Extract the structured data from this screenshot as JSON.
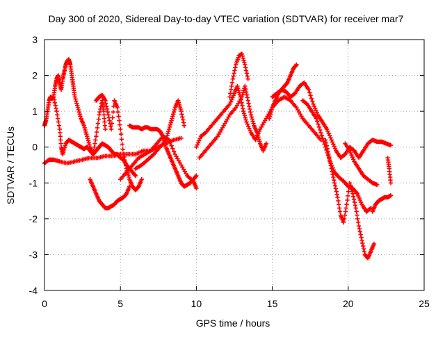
{
  "chart_data": {
    "type": "scatter",
    "title": "Day 300 of 2020, Sidereal Day-to-day VTEC variation (SDTVAR) for receiver mar7",
    "xlabel": "GPS time / hours",
    "ylabel": "SDTVAR / TECUs",
    "xlim": [
      0,
      25
    ],
    "ylim": [
      -4,
      3
    ],
    "xticks": [
      0,
      5,
      10,
      15,
      20,
      25
    ],
    "yticks": [
      -4,
      -3,
      -2,
      -1,
      0,
      1,
      2,
      3
    ],
    "xtick_labels": [
      "0",
      "5",
      "10",
      "15",
      "20",
      "25"
    ],
    "ytick_labels": [
      "-4",
      "-3",
      "-2",
      "-1",
      "0",
      "1",
      "2",
      "3"
    ],
    "grid": true,
    "marker": "+",
    "color": "#ff0000",
    "series": [
      {
        "name": "trace-1",
        "x": [
          0.0,
          0.1,
          0.2,
          0.3,
          0.4,
          0.5,
          0.6,
          0.7,
          0.8,
          0.9,
          1.0,
          1.1,
          1.2,
          1.3,
          1.4,
          1.5,
          1.6,
          1.7,
          1.8,
          1.9,
          2.0,
          2.2,
          2.4,
          2.6,
          2.8,
          3.0,
          3.2,
          3.4,
          3.6,
          3.8,
          3.9,
          4.0
        ],
        "y": [
          0.6,
          0.75,
          1.0,
          1.3,
          1.4,
          1.35,
          1.4,
          1.7,
          1.9,
          2.0,
          1.8,
          1.6,
          1.9,
          2.1,
          2.3,
          2.4,
          2.45,
          2.3,
          2.0,
          1.7,
          1.4,
          1.1,
          0.8,
          0.6,
          0.3,
          0.0,
          -0.2,
          0.3,
          0.9,
          1.3,
          1.0,
          0.5
        ]
      },
      {
        "name": "trace-2",
        "x": [
          0.6,
          0.8,
          1.0,
          1.1,
          1.2,
          1.4,
          1.6,
          1.8,
          2.0,
          2.2,
          2.4,
          2.6,
          2.8,
          3.0,
          3.2,
          3.4,
          3.6,
          3.8,
          4.0,
          4.2,
          4.4,
          4.6,
          4.8,
          5.0,
          5.2,
          5.4,
          5.6,
          5.8,
          6.0
        ],
        "y": [
          1.4,
          1.0,
          0.5,
          0.0,
          -0.2,
          0.1,
          0.2,
          0.15,
          0.1,
          0.05,
          0.0,
          -0.05,
          0.0,
          -0.1,
          -0.2,
          -0.1,
          0.0,
          0.1,
          0.05,
          0.0,
          -0.1,
          -0.2,
          -0.2,
          -0.3,
          -0.35,
          -0.5,
          -0.6,
          -0.7,
          -0.8
        ]
      },
      {
        "name": "trace-3",
        "x": [
          0.0,
          0.3,
          0.6,
          1.0,
          1.5,
          2.0,
          2.5,
          3.0,
          3.5,
          4.0,
          4.5,
          5.0,
          5.5,
          6.0,
          6.5,
          7.0,
          7.5,
          8.0,
          8.5,
          9.0
        ],
        "y": [
          -0.45,
          -0.35,
          -0.35,
          -0.4,
          -0.45,
          -0.4,
          -0.35,
          -0.3,
          -0.3,
          -0.25,
          -0.25,
          -0.2,
          -0.2,
          -0.2,
          -0.1,
          -0.1,
          0.0,
          0.1,
          0.2,
          0.25
        ]
      },
      {
        "name": "trace-4",
        "x": [
          3.0,
          3.2,
          3.4,
          3.6,
          3.8,
          4.0,
          4.2,
          4.4,
          4.6,
          4.8,
          5.0,
          5.2,
          5.4,
          5.6
        ],
        "y": [
          -0.9,
          -1.1,
          -1.3,
          -1.5,
          -1.6,
          -1.7,
          -1.7,
          -1.65,
          -1.6,
          -1.5,
          -1.45,
          -1.4,
          -1.3,
          -1.1
        ]
      },
      {
        "name": "trace-5",
        "x": [
          3.4,
          3.6,
          3.8,
          4.0,
          4.2,
          4.4,
          4.6,
          4.8,
          5.0,
          5.2,
          5.4,
          5.6,
          5.8,
          6.0,
          6.2,
          6.4
        ],
        "y": [
          1.3,
          1.4,
          1.45,
          1.3,
          0.9,
          0.5,
          1.3,
          1.1,
          0.5,
          -0.2,
          -0.6,
          -0.9,
          -1.1,
          -1.2,
          -1.1,
          -0.9
        ]
      },
      {
        "name": "trace-6",
        "x": [
          5.6,
          5.8,
          6.0,
          6.2,
          6.4,
          6.6,
          6.8,
          7.0,
          7.2,
          7.4,
          7.6,
          7.8,
          8.0,
          8.2,
          8.4,
          8.6,
          8.8,
          9.0,
          9.2,
          9.4,
          9.6,
          9.8,
          10.0
        ],
        "y": [
          0.6,
          0.55,
          0.55,
          0.55,
          0.5,
          0.55,
          0.55,
          0.5,
          0.5,
          0.5,
          0.45,
          0.3,
          0.0,
          -0.2,
          -0.4,
          -0.6,
          -0.8,
          -1.0,
          -1.1,
          -1.05,
          -1.0,
          -0.9,
          -0.8
        ]
      },
      {
        "name": "trace-7",
        "x": [
          5.0,
          5.4,
          5.8,
          6.2,
          6.6,
          7.0,
          7.4,
          7.8,
          8.2,
          8.6,
          9.0,
          9.4,
          9.8,
          10.0
        ],
        "y": [
          -0.9,
          -0.7,
          -0.5,
          -0.3,
          -0.2,
          -0.1,
          0.1,
          0.3,
          0.2,
          -0.2,
          -0.5,
          -0.8,
          -0.95,
          -1.15
        ]
      },
      {
        "name": "trace-8",
        "x": [
          6.0,
          6.4,
          6.8,
          7.2,
          7.6,
          8.0,
          8.2,
          8.4,
          8.6,
          8.8,
          9.0,
          9.2
        ],
        "y": [
          -0.6,
          -0.5,
          -0.35,
          -0.2,
          0.0,
          0.2,
          0.5,
          0.8,
          1.1,
          1.3,
          1.0,
          0.6
        ]
      },
      {
        "name": "trace-9",
        "x": [
          10.0,
          10.3,
          10.6,
          11.0,
          11.4,
          11.8,
          12.2,
          12.5,
          12.7,
          12.9,
          13.1,
          13.3,
          13.6,
          13.9,
          14.2,
          14.6,
          15.0,
          15.4,
          15.8,
          16.2,
          16.6,
          17.0,
          17.4,
          17.8,
          18.2
        ],
        "y": [
          0.0,
          0.3,
          0.4,
          0.6,
          0.8,
          1.0,
          1.2,
          1.5,
          1.7,
          1.4,
          1.0,
          0.7,
          0.4,
          0.2,
          0.5,
          0.8,
          1.1,
          1.3,
          1.4,
          1.3,
          1.1,
          0.8,
          0.6,
          0.4,
          0.2
        ]
      },
      {
        "name": "trace-10",
        "x": [
          12.2,
          12.4,
          12.6,
          12.8,
          13.0,
          13.2,
          13.4
        ],
        "y": [
          1.4,
          1.9,
          2.3,
          2.55,
          2.6,
          2.3,
          1.9
        ]
      },
      {
        "name": "trace-11",
        "x": [
          10.2,
          10.6,
          11.0,
          11.4,
          11.8,
          12.2,
          12.6,
          13.0,
          13.2,
          13.4,
          13.6,
          13.8,
          14.0,
          14.2,
          14.4,
          14.6
        ],
        "y": [
          -0.3,
          -0.1,
          0.1,
          0.3,
          0.6,
          0.9,
          1.1,
          1.4,
          1.7,
          1.3,
          0.9,
          0.6,
          0.4,
          0.1,
          -0.1,
          0.1
        ]
      },
      {
        "name": "trace-12",
        "x": [
          14.8,
          15.0,
          15.2,
          15.4,
          15.6,
          15.8,
          16.0,
          16.2,
          16.4,
          16.6
        ],
        "y": [
          0.8,
          1.1,
          1.3,
          1.5,
          1.6,
          1.7,
          1.8,
          2.0,
          2.2,
          2.3
        ]
      },
      {
        "name": "trace-13",
        "x": [
          15.0,
          15.3,
          15.6,
          15.9,
          16.2,
          16.5,
          16.8,
          17.1,
          17.4,
          17.7,
          18.0,
          18.3,
          18.6,
          18.9,
          19.2,
          19.5,
          19.8,
          20.1,
          20.4,
          20.7,
          21.0,
          21.3,
          21.6,
          21.9,
          22.2,
          22.5,
          22.8
        ],
        "y": [
          1.4,
          1.5,
          1.6,
          1.55,
          1.4,
          1.5,
          1.7,
          1.8,
          1.6,
          1.2,
          0.9,
          0.7,
          0.5,
          0.2,
          -0.1,
          -0.3,
          -0.2,
          0.0,
          -0.1,
          -0.3,
          -0.1,
          0.1,
          0.2,
          0.15,
          0.15,
          0.1,
          0.05
        ]
      },
      {
        "name": "trace-14",
        "x": [
          17.0,
          17.3,
          17.6,
          17.9,
          18.2,
          18.5,
          18.8,
          19.1,
          19.4,
          19.7,
          20.0,
          20.3,
          20.6,
          20.9,
          21.2,
          21.5
        ],
        "y": [
          1.3,
          1.2,
          1.0,
          0.8,
          0.4,
          0.0,
          -0.4,
          -0.7,
          -0.85,
          -0.95,
          -1.1,
          -1.15,
          -1.3,
          -1.6,
          -1.8,
          -1.7
        ]
      },
      {
        "name": "trace-15",
        "x": [
          18.5,
          18.7,
          18.9,
          19.1,
          19.3,
          19.5,
          19.7,
          19.9,
          20.1,
          20.3,
          20.5,
          20.7,
          20.9,
          21.1,
          21.3,
          21.5,
          21.7
        ],
        "y": [
          0.2,
          -0.2,
          -0.6,
          -1.0,
          -1.4,
          -1.9,
          -2.1,
          -1.6,
          -1.0,
          -1.3,
          -1.7,
          -2.2,
          -2.6,
          -3.0,
          -3.1,
          -2.9,
          -2.7
        ]
      },
      {
        "name": "trace-16",
        "x": [
          21.6,
          21.8,
          22.0,
          22.2,
          22.4,
          22.6,
          22.8
        ],
        "y": [
          -1.8,
          -1.6,
          -1.5,
          -1.45,
          -1.4,
          -1.4,
          -1.35
        ]
      },
      {
        "name": "trace-17",
        "x": [
          19.8,
          20.1,
          20.4,
          20.7,
          21.0,
          21.3,
          21.6,
          21.9
        ],
        "y": [
          0.1,
          -0.1,
          -0.4,
          -0.6,
          -0.8,
          -0.9,
          -1.0,
          -1.05
        ]
      },
      {
        "name": "trace-18",
        "x": [
          22.6,
          22.7,
          22.8
        ],
        "y": [
          -0.3,
          -0.6,
          -1.0
        ]
      }
    ]
  }
}
